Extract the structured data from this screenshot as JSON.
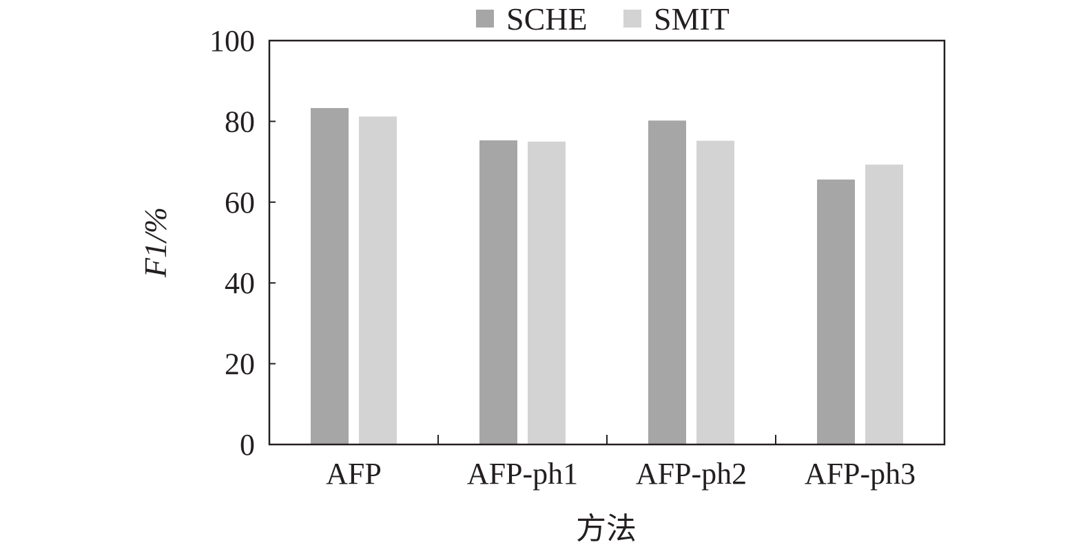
{
  "chart_data": {
    "type": "bar",
    "categories": [
      "AFP",
      "AFP-ph1",
      "AFP-ph2",
      "AFP-ph3"
    ],
    "series": [
      {
        "name": "SCHE",
        "values": [
          83.3,
          75.3,
          80.2,
          65.6
        ],
        "color": "#a7a6a6"
      },
      {
        "name": "SMIT",
        "values": [
          81.2,
          75.0,
          75.2,
          69.3
        ],
        "color": "#d3d3d3"
      }
    ],
    "xlabel": "方法",
    "ylabel": "F1/%",
    "ylim": [
      0,
      100
    ],
    "yticks": [
      0,
      20,
      40,
      60,
      80,
      100
    ],
    "grid": false,
    "legend_position": "top"
  }
}
